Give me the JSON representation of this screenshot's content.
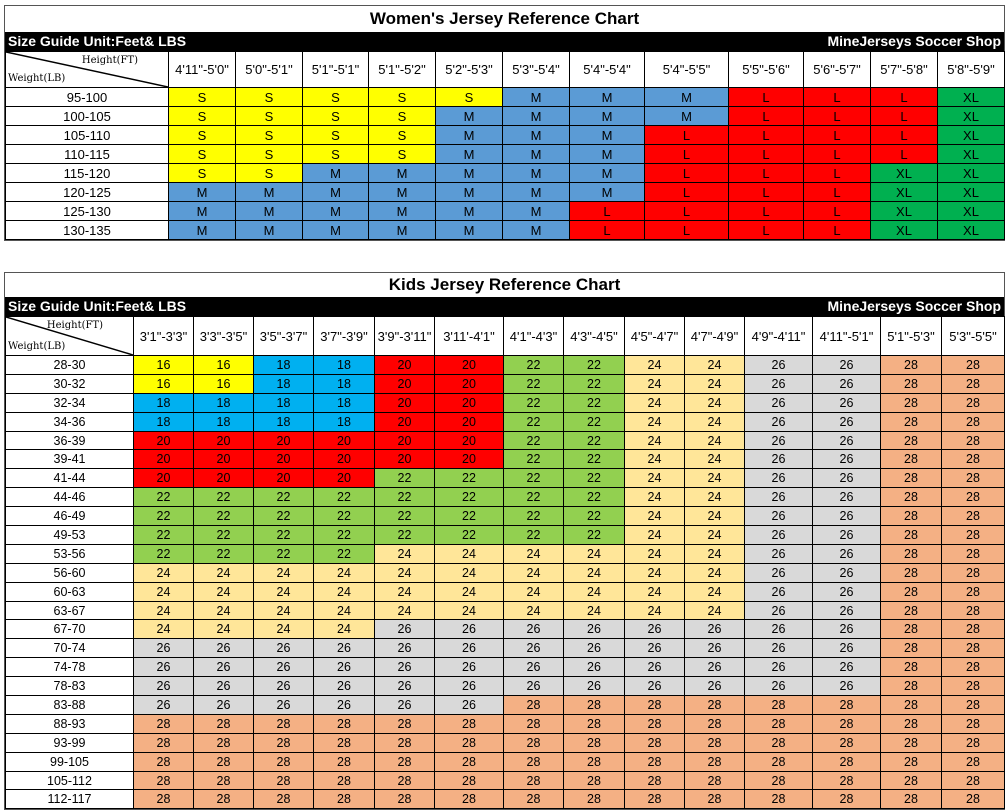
{
  "women": {
    "title": "Women's Jersey Reference Chart",
    "unit_label": "Size Guide Unit:Feet& LBS",
    "shop_label": "MineJerseys Soccer Shop",
    "corner_height": "Height(FT)",
    "corner_weight": "Weight(LB)",
    "columns": [
      "4'11\"-5'0\"",
      "5'0\"-5'1\"",
      "5'1\"-5'1\"",
      "5'1\"-5'2\"",
      "5'2\"-5'3\"",
      "5'3\"-5'4\"",
      "5'4\"-5'4\"",
      "5'4\"-5'5\"",
      "5'5\"-5'6\"",
      "5'6\"-5'7\"",
      "5'7\"-5'8\"",
      "5'8\"-5'9\""
    ],
    "rows": [
      {
        "weight": "95-100",
        "sizes": [
          "S",
          "S",
          "S",
          "S",
          "S",
          "M",
          "M",
          "M",
          "L",
          "L",
          "L",
          "XL"
        ]
      },
      {
        "weight": "100-105",
        "sizes": [
          "S",
          "S",
          "S",
          "S",
          "M",
          "M",
          "M",
          "M",
          "L",
          "L",
          "L",
          "XL"
        ]
      },
      {
        "weight": "105-110",
        "sizes": [
          "S",
          "S",
          "S",
          "S",
          "M",
          "M",
          "M",
          "L",
          "L",
          "L",
          "L",
          "XL"
        ]
      },
      {
        "weight": "110-115",
        "sizes": [
          "S",
          "S",
          "S",
          "S",
          "M",
          "M",
          "M",
          "L",
          "L",
          "L",
          "L",
          "XL"
        ]
      },
      {
        "weight": "115-120",
        "sizes": [
          "S",
          "S",
          "M",
          "M",
          "M",
          "M",
          "M",
          "L",
          "L",
          "L",
          "XL",
          "XL"
        ]
      },
      {
        "weight": "120-125",
        "sizes": [
          "M",
          "M",
          "M",
          "M",
          "M",
          "M",
          "M",
          "L",
          "L",
          "L",
          "XL",
          "XL"
        ]
      },
      {
        "weight": "125-130",
        "sizes": [
          "M",
          "M",
          "M",
          "M",
          "M",
          "M",
          "L",
          "L",
          "L",
          "L",
          "XL",
          "XL"
        ]
      },
      {
        "weight": "130-135",
        "sizes": [
          "M",
          "M",
          "M",
          "M",
          "M",
          "M",
          "L",
          "L",
          "L",
          "L",
          "XL",
          "XL"
        ]
      }
    ],
    "colors": {
      "S": "#ffff00",
      "M": "#5b9bd5",
      "L": "#ff0000",
      "XL": "#00b050"
    }
  },
  "kids": {
    "title": "Kids Jersey Reference Chart",
    "unit_label": "Size Guide Unit:Feet& LBS",
    "shop_label": "MineJerseys Soccer Shop",
    "corner_height": "Height(FT)",
    "corner_weight": "Weight(LB)",
    "columns": [
      "3'1\"-3'3\"",
      "3'3\"-3'5\"",
      "3'5\"-3'7\"",
      "3'7\"-3'9\"",
      "3'9\"-3'11\"",
      "3'11'-4'1\"",
      "4'1\"-4'3\"",
      "4'3\"-4'5\"",
      "4'5\"-4'7\"",
      "4'7\"-4'9\"",
      "4'9\"-4'11\"",
      "4'11\"-5'1\"",
      "5'1\"-5'3\"",
      "5'3\"-5'5\""
    ],
    "rows": [
      {
        "weight": "28-30",
        "sizes": [
          "16",
          "16",
          "18",
          "18",
          "20",
          "20",
          "22",
          "22",
          "24",
          "24",
          "26",
          "26",
          "28",
          "28"
        ]
      },
      {
        "weight": "30-32",
        "sizes": [
          "16",
          "16",
          "18",
          "18",
          "20",
          "20",
          "22",
          "22",
          "24",
          "24",
          "26",
          "26",
          "28",
          "28"
        ]
      },
      {
        "weight": "32-34",
        "sizes": [
          "18",
          "18",
          "18",
          "18",
          "20",
          "20",
          "22",
          "22",
          "24",
          "24",
          "26",
          "26",
          "28",
          "28"
        ]
      },
      {
        "weight": "34-36",
        "sizes": [
          "18",
          "18",
          "18",
          "18",
          "20",
          "20",
          "22",
          "22",
          "24",
          "24",
          "26",
          "26",
          "28",
          "28"
        ]
      },
      {
        "weight": "36-39",
        "sizes": [
          "20",
          "20",
          "20",
          "20",
          "20",
          "20",
          "22",
          "22",
          "24",
          "24",
          "26",
          "26",
          "28",
          "28"
        ]
      },
      {
        "weight": "39-41",
        "sizes": [
          "20",
          "20",
          "20",
          "20",
          "20",
          "20",
          "22",
          "22",
          "24",
          "24",
          "26",
          "26",
          "28",
          "28"
        ]
      },
      {
        "weight": "41-44",
        "sizes": [
          "20",
          "20",
          "20",
          "20",
          "22",
          "22",
          "22",
          "22",
          "24",
          "24",
          "26",
          "26",
          "28",
          "28"
        ]
      },
      {
        "weight": "44-46",
        "sizes": [
          "22",
          "22",
          "22",
          "22",
          "22",
          "22",
          "22",
          "22",
          "24",
          "24",
          "26",
          "26",
          "28",
          "28"
        ]
      },
      {
        "weight": "46-49",
        "sizes": [
          "22",
          "22",
          "22",
          "22",
          "22",
          "22",
          "22",
          "22",
          "24",
          "24",
          "26",
          "26",
          "28",
          "28"
        ]
      },
      {
        "weight": "49-53",
        "sizes": [
          "22",
          "22",
          "22",
          "22",
          "22",
          "22",
          "22",
          "22",
          "24",
          "24",
          "26",
          "26",
          "28",
          "28"
        ]
      },
      {
        "weight": "53-56",
        "sizes": [
          "22",
          "22",
          "22",
          "22",
          "24",
          "24",
          "24",
          "24",
          "24",
          "24",
          "26",
          "26",
          "28",
          "28"
        ]
      },
      {
        "weight": "56-60",
        "sizes": [
          "24",
          "24",
          "24",
          "24",
          "24",
          "24",
          "24",
          "24",
          "24",
          "24",
          "26",
          "26",
          "28",
          "28"
        ]
      },
      {
        "weight": "60-63",
        "sizes": [
          "24",
          "24",
          "24",
          "24",
          "24",
          "24",
          "24",
          "24",
          "24",
          "24",
          "26",
          "26",
          "28",
          "28"
        ]
      },
      {
        "weight": "63-67",
        "sizes": [
          "24",
          "24",
          "24",
          "24",
          "24",
          "24",
          "24",
          "24",
          "24",
          "24",
          "26",
          "26",
          "28",
          "28"
        ]
      },
      {
        "weight": "67-70",
        "sizes": [
          "24",
          "24",
          "24",
          "24",
          "26",
          "26",
          "26",
          "26",
          "26",
          "26",
          "26",
          "26",
          "28",
          "28"
        ]
      },
      {
        "weight": "70-74",
        "sizes": [
          "26",
          "26",
          "26",
          "26",
          "26",
          "26",
          "26",
          "26",
          "26",
          "26",
          "26",
          "26",
          "28",
          "28"
        ]
      },
      {
        "weight": "74-78",
        "sizes": [
          "26",
          "26",
          "26",
          "26",
          "26",
          "26",
          "26",
          "26",
          "26",
          "26",
          "26",
          "26",
          "28",
          "28"
        ]
      },
      {
        "weight": "78-83",
        "sizes": [
          "26",
          "26",
          "26",
          "26",
          "26",
          "26",
          "26",
          "26",
          "26",
          "26",
          "26",
          "26",
          "28",
          "28"
        ]
      },
      {
        "weight": "83-88",
        "sizes": [
          "26",
          "26",
          "26",
          "26",
          "26",
          "26",
          "28",
          "28",
          "28",
          "28",
          "28",
          "28",
          "28",
          "28"
        ]
      },
      {
        "weight": "88-93",
        "sizes": [
          "28",
          "28",
          "28",
          "28",
          "28",
          "28",
          "28",
          "28",
          "28",
          "28",
          "28",
          "28",
          "28",
          "28"
        ]
      },
      {
        "weight": "93-99",
        "sizes": [
          "28",
          "28",
          "28",
          "28",
          "28",
          "28",
          "28",
          "28",
          "28",
          "28",
          "28",
          "28",
          "28",
          "28"
        ]
      },
      {
        "weight": "99-105",
        "sizes": [
          "28",
          "28",
          "28",
          "28",
          "28",
          "28",
          "28",
          "28",
          "28",
          "28",
          "28",
          "28",
          "28",
          "28"
        ]
      },
      {
        "weight": "105-112",
        "sizes": [
          "28",
          "28",
          "28",
          "28",
          "28",
          "28",
          "28",
          "28",
          "28",
          "28",
          "28",
          "28",
          "28",
          "28"
        ]
      },
      {
        "weight": "112-117",
        "sizes": [
          "28",
          "28",
          "28",
          "28",
          "28",
          "28",
          "28",
          "28",
          "28",
          "28",
          "28",
          "28",
          "28",
          "28"
        ]
      }
    ],
    "colors": {
      "16": "#ffff00",
      "18": "#00b0f0",
      "20": "#ff0000",
      "22": "#92d050",
      "24": "#ffe699",
      "26": "#d9d9d9",
      "28": "#f4b084"
    }
  }
}
